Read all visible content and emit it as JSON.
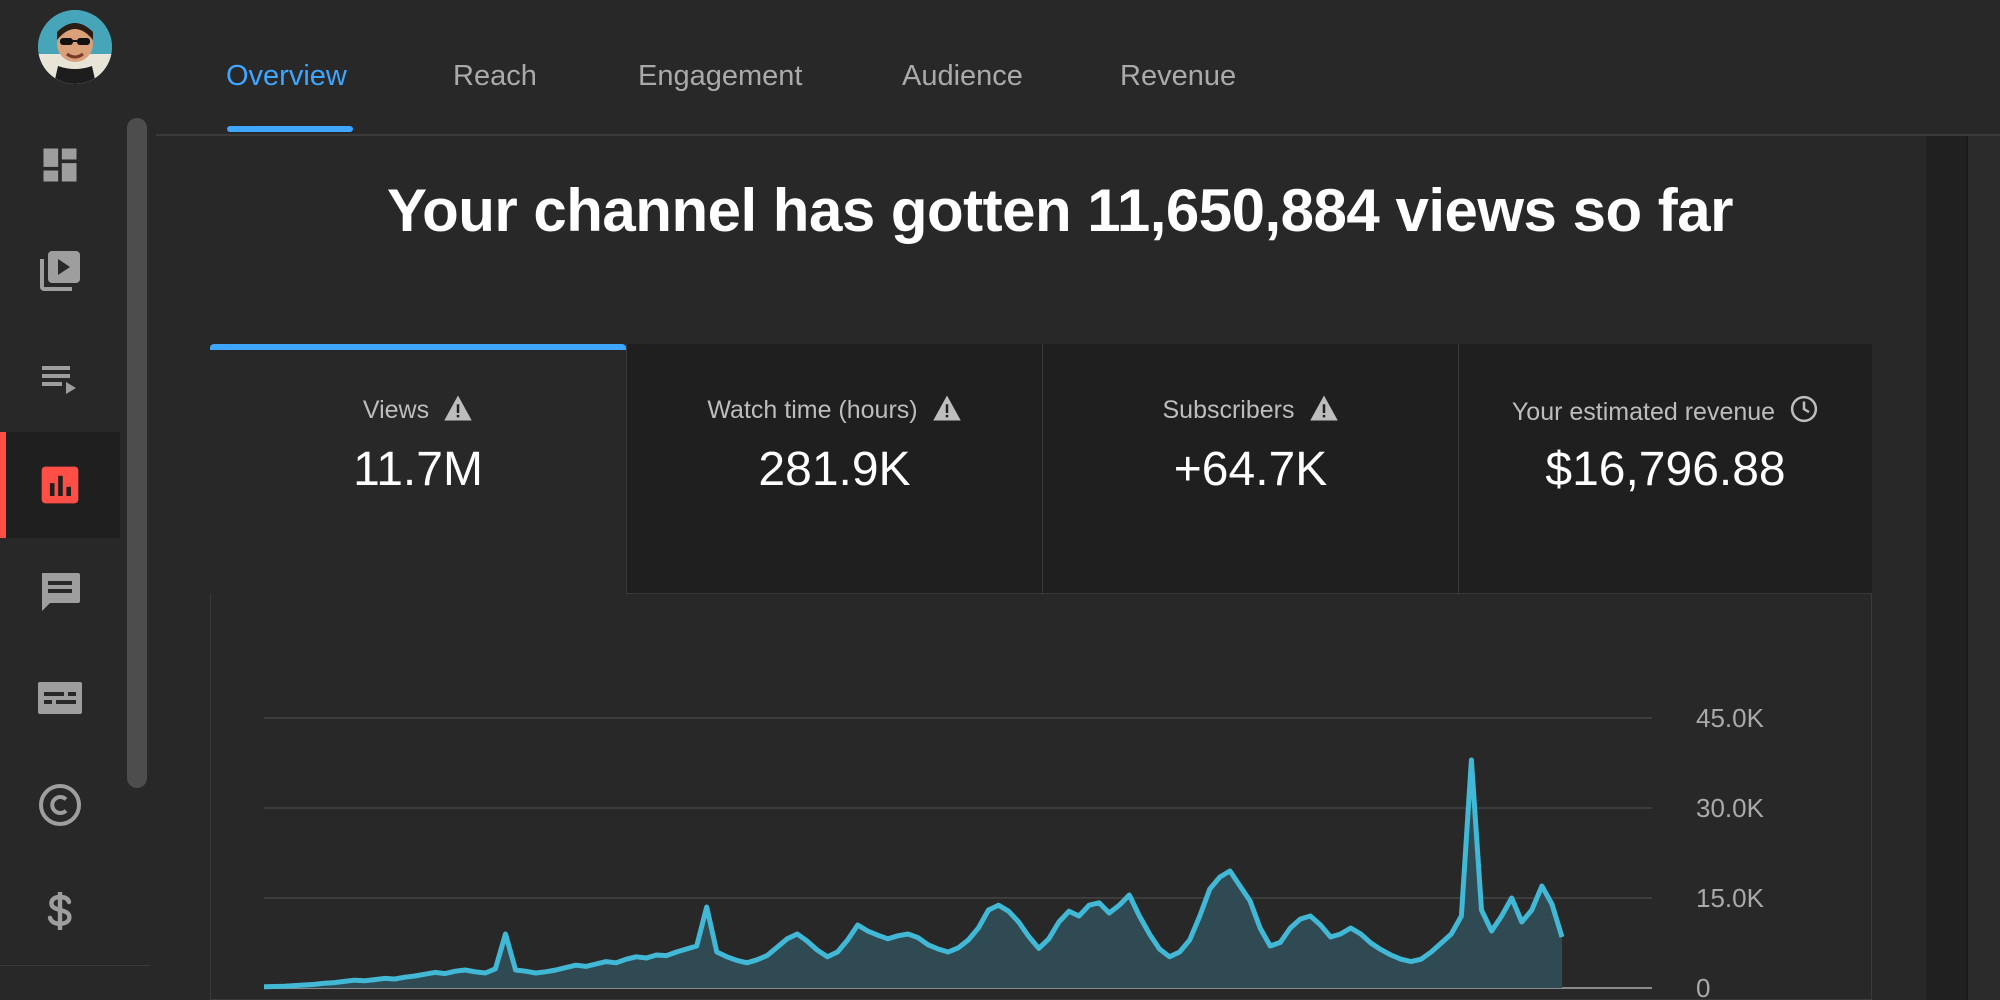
{
  "tabs": [
    {
      "label": "Overview",
      "active": true
    },
    {
      "label": "Reach",
      "active": false
    },
    {
      "label": "Engagement",
      "active": false
    },
    {
      "label": "Audience",
      "active": false
    },
    {
      "label": "Revenue",
      "active": false
    }
  ],
  "sidebar": {
    "items": [
      {
        "icon": "dashboard-icon",
        "active": false
      },
      {
        "icon": "content-icon",
        "active": false
      },
      {
        "icon": "playlists-icon",
        "active": false
      },
      {
        "icon": "analytics-icon",
        "active": true
      },
      {
        "icon": "comments-icon",
        "active": false
      },
      {
        "icon": "subtitles-icon",
        "active": false
      },
      {
        "icon": "copyright-icon",
        "active": false
      },
      {
        "icon": "monetization-icon",
        "active": false
      }
    ]
  },
  "headline": "Your channel has gotten 11,650,884 views so far",
  "metrics": [
    {
      "label": "Views",
      "value": "11.7M",
      "icon": "warning-icon",
      "active": true
    },
    {
      "label": "Watch time (hours)",
      "value": "281.9K",
      "icon": "warning-icon",
      "active": false
    },
    {
      "label": "Subscribers",
      "value": "+64.7K",
      "icon": "warning-icon",
      "active": false
    },
    {
      "label": "Your estimated revenue",
      "value": "$16,796.88",
      "icon": "clock-icon",
      "active": false
    }
  ],
  "colors": {
    "accent": "#3ea6ff",
    "active_nav": "#ff4e45",
    "series": "#41b8d5"
  },
  "chart_data": {
    "type": "area",
    "series_name": "",
    "ylim": [
      0,
      45000
    ],
    "yticks": [
      {
        "value": 0,
        "label": "0"
      },
      {
        "value": 15000,
        "label": "15.0K"
      },
      {
        "value": 30000,
        "label": "30.0K"
      },
      {
        "value": 45000,
        "label": "45.0K"
      }
    ],
    "values": [
      200,
      250,
      300,
      400,
      500,
      600,
      800,
      900,
      1100,
      1300,
      1200,
      1400,
      1600,
      1500,
      1800,
      2000,
      2300,
      2600,
      2400,
      2800,
      3000,
      2700,
      2500,
      3200,
      9000,
      3000,
      2800,
      2500,
      2700,
      3000,
      3400,
      3800,
      3600,
      4000,
      4400,
      4200,
      4800,
      5200,
      5000,
      5500,
      5400,
      6000,
      6500,
      7000,
      13500,
      6000,
      5200,
      4600,
      4200,
      4700,
      5400,
      6800,
      8200,
      9000,
      7800,
      6300,
      5200,
      6000,
      8000,
      10500,
      9500,
      8800,
      8200,
      8700,
      9000,
      8400,
      7200,
      6500,
      6000,
      6700,
      8000,
      10000,
      13000,
      13800,
      12800,
      11000,
      8600,
      6600,
      8200,
      11000,
      12800,
      12000,
      13800,
      14200,
      12500,
      13800,
      15500,
      12000,
      9000,
      6500,
      5200,
      6000,
      8000,
      12000,
      16500,
      18500,
      19500,
      17000,
      14500,
      10000,
      7000,
      7600,
      10000,
      11500,
      12000,
      10500,
      8500,
      9000,
      10000,
      9000,
      7500,
      6400,
      5500,
      4800,
      4400,
      4800,
      6000,
      7500,
      9000,
      12000,
      38000,
      13000,
      9500,
      12000,
      15000,
      11000,
      13000,
      17000,
      14000,
      8500
    ]
  }
}
